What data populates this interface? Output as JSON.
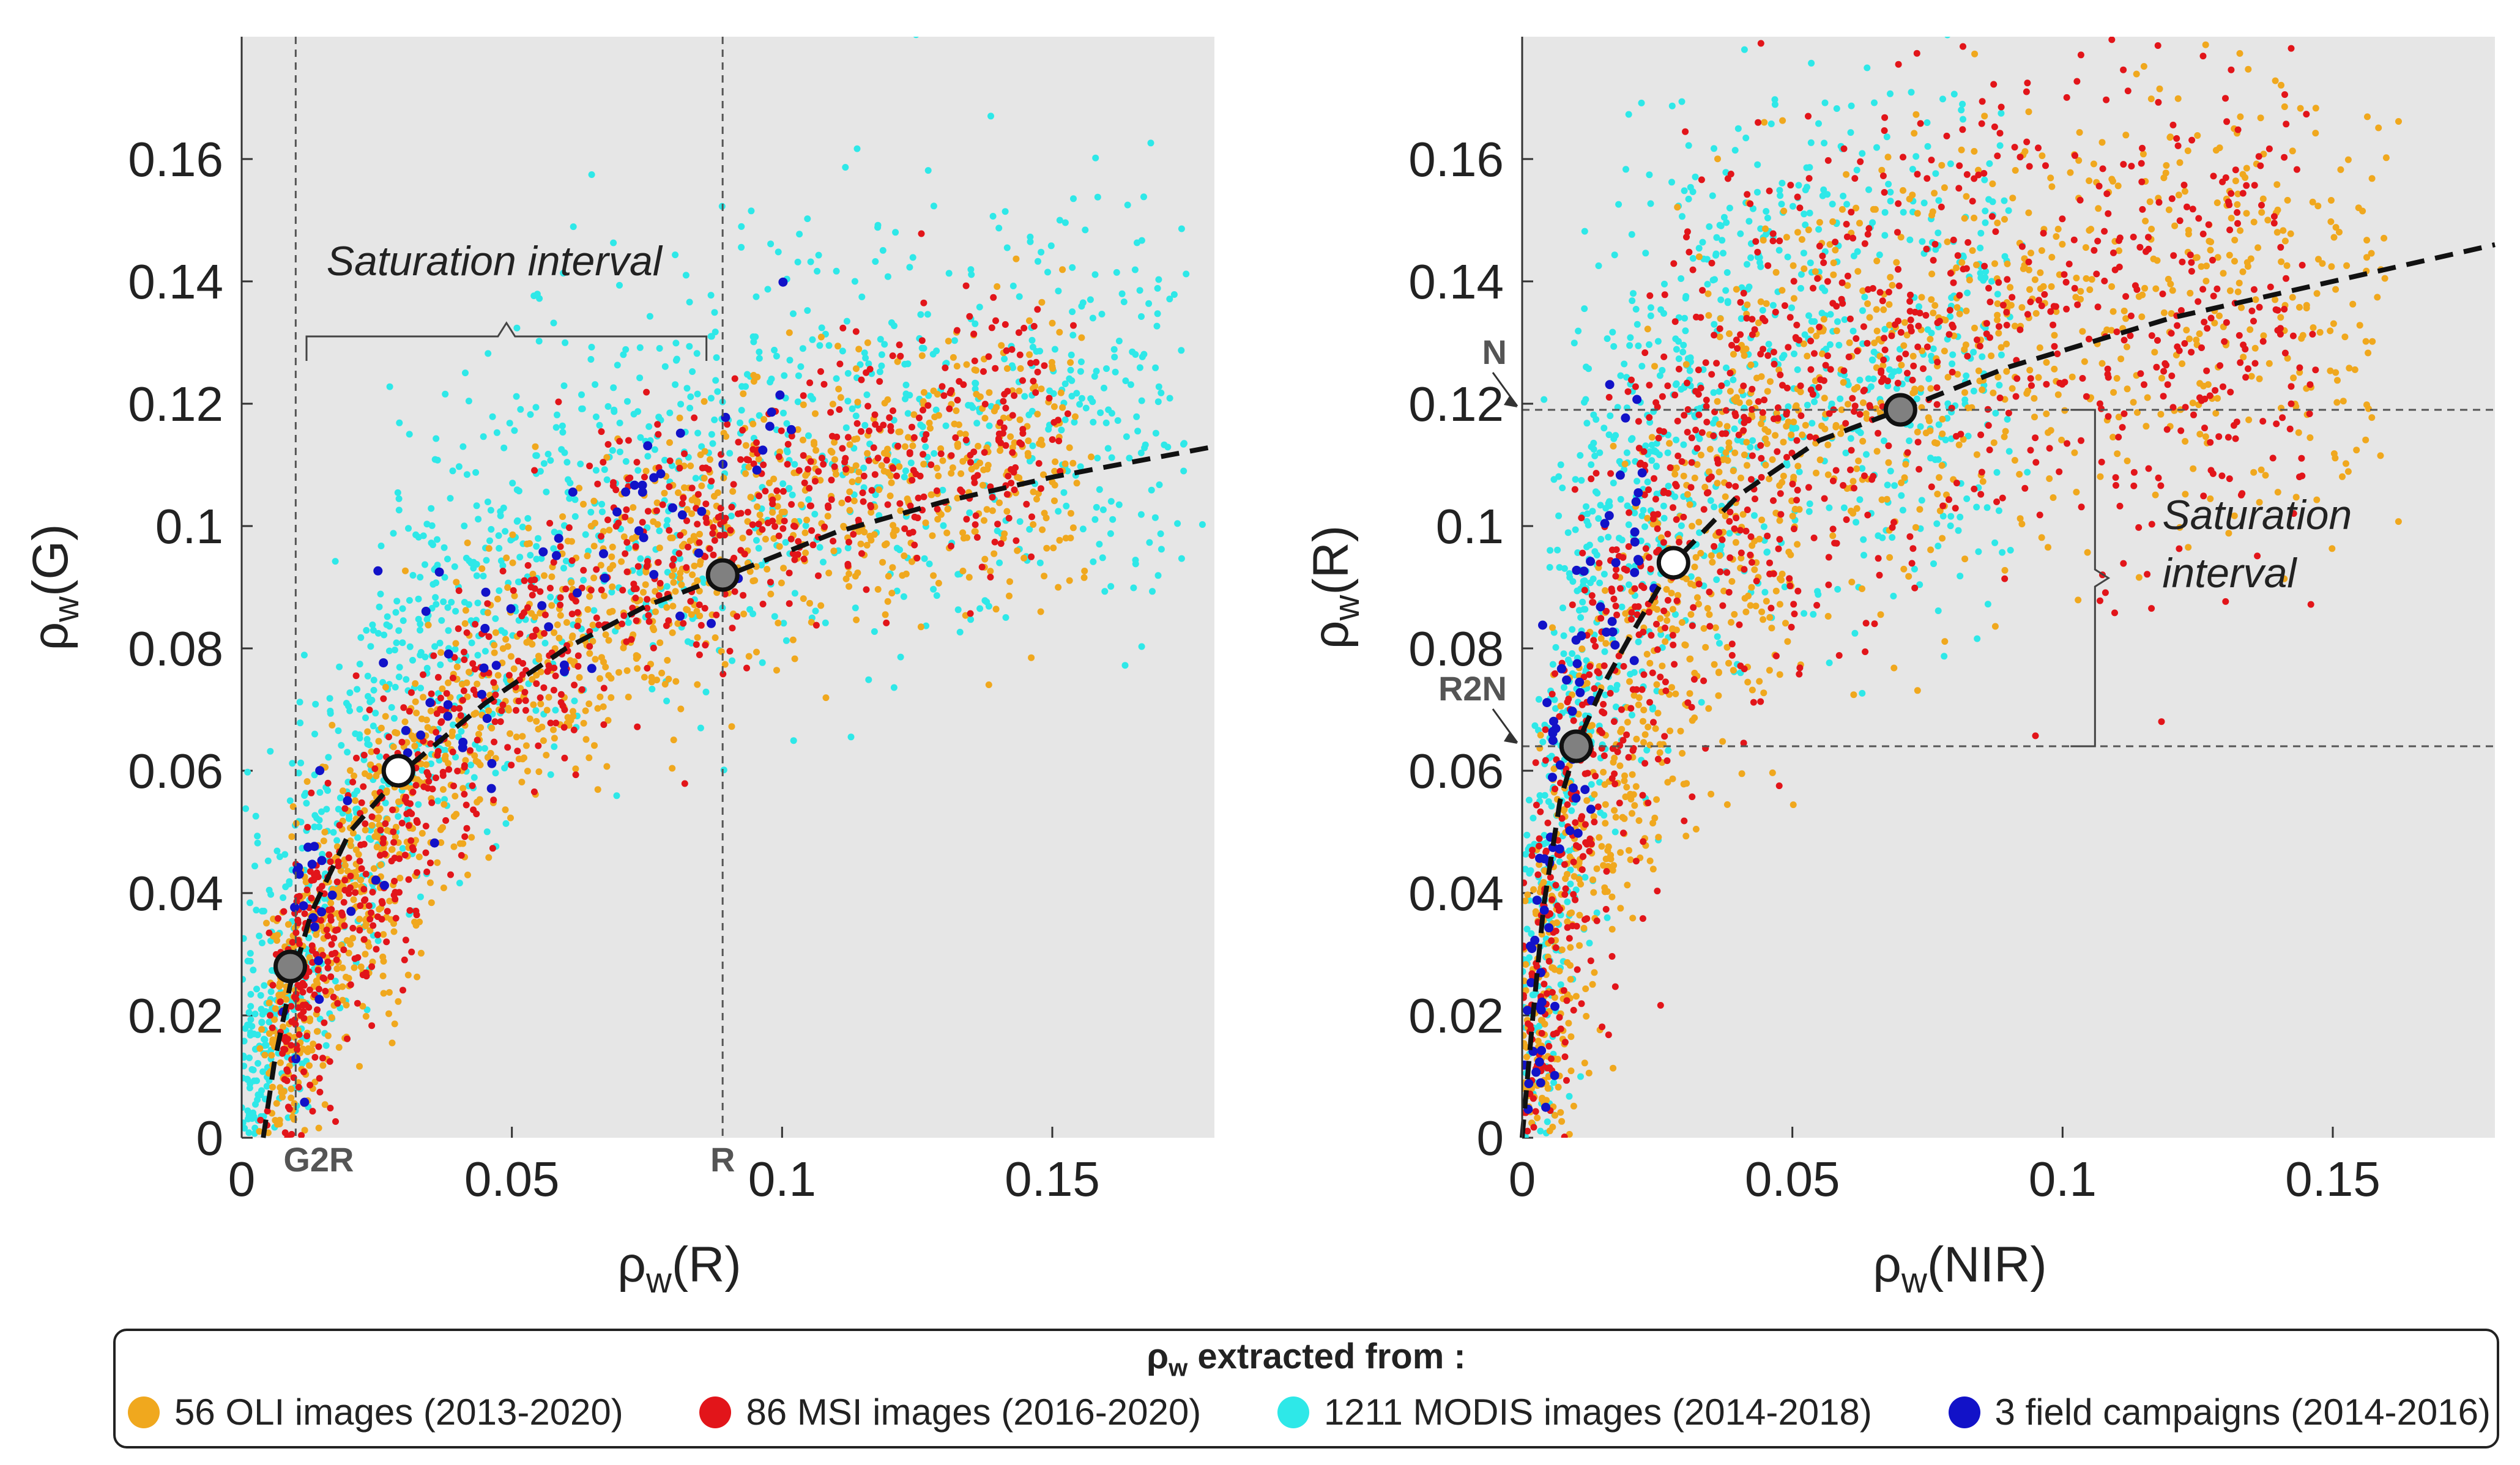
{
  "colors": {
    "oli": "#F0A81E",
    "msi": "#E2151A",
    "modis": "#2EE8E8",
    "field": "#1212C8",
    "panel_bg": "#E6E6E6",
    "fit": "#111111",
    "grey_marker": "#808080",
    "white_marker": "#ffffff"
  },
  "chart_data": [
    {
      "type": "scatter",
      "panel": "left",
      "xlabel_base": "ρ",
      "xlabel_sub": "w",
      "xlabel_arg": "(R)",
      "ylabel_base": "ρ",
      "ylabel_sub": "w",
      "ylabel_arg": "(G)",
      "xlim": [
        0,
        0.18
      ],
      "ylim": [
        0,
        0.18
      ],
      "xticks": [
        0,
        0.05,
        0.1,
        0.15
      ],
      "xtick_labels": [
        "0",
        "0.05",
        "0.1",
        "0.15"
      ],
      "yticks": [
        0,
        0.02,
        0.04,
        0.06,
        0.08,
        0.1,
        0.12,
        0.14,
        0.16
      ],
      "ytick_labels": [
        "0",
        "0.02",
        "0.04",
        "0.06",
        "0.08",
        "0.1",
        "0.12",
        "0.14",
        "0.16"
      ],
      "fit_curve": {
        "style": "dashed",
        "points": [
          [
            0.004,
            0.0
          ],
          [
            0.006,
            0.012
          ],
          [
            0.009,
            0.025
          ],
          [
            0.013,
            0.037
          ],
          [
            0.02,
            0.05
          ],
          [
            0.03,
            0.06
          ],
          [
            0.045,
            0.071
          ],
          [
            0.06,
            0.08
          ],
          [
            0.075,
            0.087
          ],
          [
            0.09,
            0.092
          ],
          [
            0.11,
            0.099
          ],
          [
            0.13,
            0.104
          ],
          [
            0.15,
            0.108
          ],
          [
            0.18,
            0.113
          ]
        ]
      },
      "markers": [
        {
          "name": "G2R",
          "x": 0.009,
          "y": 0.028,
          "fill": "grey"
        },
        {
          "name": "mid",
          "x": 0.029,
          "y": 0.06,
          "fill": "white"
        },
        {
          "name": "R",
          "x": 0.089,
          "y": 0.092,
          "fill": "grey"
        }
      ],
      "vlines": [
        {
          "x": 0.01,
          "label": "G2R"
        },
        {
          "x": 0.089,
          "label": "R"
        }
      ],
      "annotation": {
        "text": "Saturation interval",
        "x_from": 0.012,
        "x_to": 0.086,
        "y": 0.131
      },
      "series_envelopes": {
        "oli": {
          "count": 1300,
          "xmin": 0.006,
          "xmax": 0.155,
          "fn": "0.118*(1-exp(-x/0.05))",
          "spread": 0.012
        },
        "msi": {
          "count": 900,
          "xmin": 0.008,
          "xmax": 0.152,
          "fn": "0.125*(1-exp(-x/0.055))",
          "spread": 0.012
        },
        "modis": {
          "count": 1400,
          "xmin": 0.0,
          "xmax": 0.175,
          "fn": "0.12*(1-exp(-x/0.035))",
          "spread": 0.018
        },
        "field": {
          "count": 90,
          "xmin": 0.01,
          "xmax": 0.1,
          "fn": "0.115*(1-exp(-x/0.035))",
          "spread": 0.012
        }
      }
    },
    {
      "type": "scatter",
      "panel": "right",
      "xlabel_base": "ρ",
      "xlabel_sub": "w",
      "xlabel_arg": "(NIR)",
      "ylabel_base": "ρ",
      "ylabel_sub": "w",
      "ylabel_arg": "(R)",
      "xlim": [
        0,
        0.18
      ],
      "ylim": [
        0,
        0.18
      ],
      "xticks": [
        0,
        0.05,
        0.1,
        0.15
      ],
      "xtick_labels": [
        "0",
        "0.05",
        "0.1",
        "0.15"
      ],
      "yticks": [
        0,
        0.02,
        0.04,
        0.06,
        0.08,
        0.1,
        0.12,
        0.14,
        0.16
      ],
      "ytick_labels": [
        "0",
        "0.02",
        "0.04",
        "0.06",
        "0.08",
        "0.1",
        "0.12",
        "0.14",
        "0.16"
      ],
      "fit_curve": {
        "style": "dashed",
        "points": [
          [
            0.0,
            0.0
          ],
          [
            0.002,
            0.02
          ],
          [
            0.004,
            0.038
          ],
          [
            0.007,
            0.055
          ],
          [
            0.01,
            0.064
          ],
          [
            0.015,
            0.074
          ],
          [
            0.02,
            0.082
          ],
          [
            0.028,
            0.094
          ],
          [
            0.04,
            0.105
          ],
          [
            0.055,
            0.114
          ],
          [
            0.07,
            0.119
          ],
          [
            0.09,
            0.126
          ],
          [
            0.12,
            0.134
          ],
          [
            0.15,
            0.14
          ],
          [
            0.18,
            0.146
          ]
        ]
      },
      "markers": [
        {
          "name": "R2N",
          "x": 0.01,
          "y": 0.064,
          "fill": "grey"
        },
        {
          "name": "mid",
          "x": 0.028,
          "y": 0.094,
          "fill": "white"
        },
        {
          "name": "N",
          "x": 0.07,
          "y": 0.119,
          "fill": "grey"
        }
      ],
      "hlines": [
        {
          "y": 0.119,
          "label": "N"
        },
        {
          "y": 0.064,
          "label": "R2N"
        }
      ],
      "annotation": {
        "text_line1": "Saturation",
        "text_line2": "interval",
        "x": 0.106,
        "y_from": 0.064,
        "y_to": 0.119
      },
      "series_envelopes": {
        "oli": {
          "count": 1300,
          "xmin": 0.001,
          "xmax": 0.16,
          "fn": "0.14*(1-exp(-x/0.03))",
          "spread": 0.02
        },
        "msi": {
          "count": 1100,
          "xmin": 0.001,
          "xmax": 0.145,
          "fn": "0.135*(1-exp(-x/0.02))",
          "spread": 0.022
        },
        "modis": {
          "count": 1100,
          "xmin": 0.0,
          "xmax": 0.09,
          "fn": "0.13*(1-exp(-x/0.012))",
          "spread": 0.025
        },
        "field": {
          "count": 90,
          "xmin": 0.0,
          "xmax": 0.025,
          "fn": "0.12*(1-exp(-x/0.01))",
          "spread": 0.015
        }
      }
    }
  ],
  "legend": {
    "title_base": "ρ",
    "title_sub": "w",
    "title_rest": " extracted from :",
    "items": [
      {
        "key": "oli",
        "label": "56 OLI images (2013-2020)"
      },
      {
        "key": "msi",
        "label": "86 MSI images (2016-2020)"
      },
      {
        "key": "modis",
        "label": "1211 MODIS images (2014-2018)"
      },
      {
        "key": "field",
        "label": "3 field campaigns (2014-2016)"
      }
    ]
  }
}
